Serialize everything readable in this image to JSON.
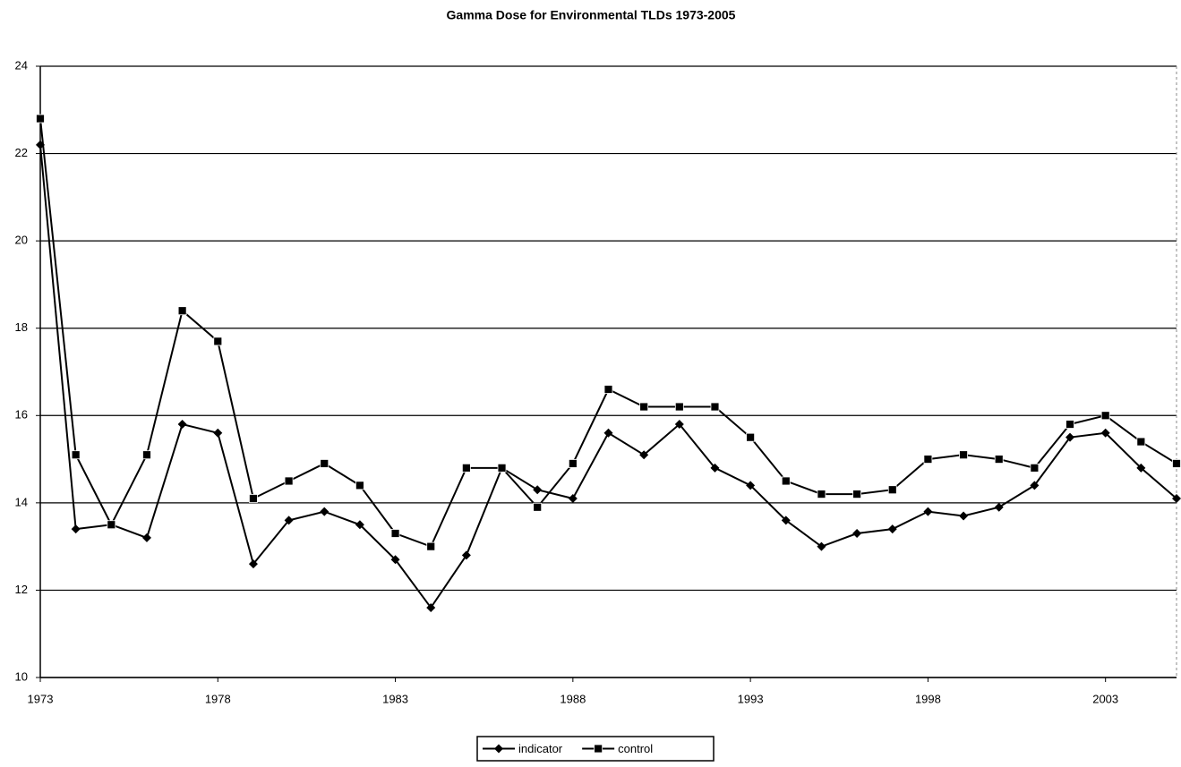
{
  "chart_data": {
    "type": "line",
    "title": "Gamma Dose for Environmental TLDs 1973-2005",
    "x": [
      1973,
      1974,
      1975,
      1976,
      1977,
      1978,
      1979,
      1980,
      1981,
      1982,
      1983,
      1984,
      1985,
      1986,
      1987,
      1988,
      1989,
      1990,
      1991,
      1992,
      1993,
      1994,
      1995,
      1996,
      1997,
      1998,
      1999,
      2000,
      2001,
      2002,
      2003,
      2004,
      2005
    ],
    "series": [
      {
        "name": "indicator",
        "color": "#000000",
        "marker": "diamond",
        "values": [
          22.2,
          13.4,
          13.5,
          13.2,
          15.8,
          15.6,
          12.6,
          13.6,
          13.8,
          13.5,
          12.7,
          11.6,
          12.8,
          14.8,
          14.3,
          14.1,
          15.6,
          15.1,
          15.8,
          14.8,
          14.4,
          13.6,
          13.0,
          13.3,
          13.4,
          13.8,
          13.7,
          13.9,
          14.4,
          15.5,
          15.6,
          14.8,
          14.1
        ]
      },
      {
        "name": "control",
        "color": "#000000",
        "marker": "square",
        "values": [
          22.8,
          15.1,
          13.5,
          15.1,
          18.4,
          17.7,
          14.1,
          14.5,
          14.9,
          14.4,
          13.3,
          13.0,
          14.8,
          14.8,
          13.9,
          14.9,
          16.6,
          16.2,
          16.2,
          16.2,
          15.5,
          14.5,
          14.2,
          14.2,
          14.3,
          15.0,
          15.1,
          15.0,
          14.8,
          15.8,
          16.0,
          15.4,
          14.9
        ]
      }
    ],
    "xlim": [
      1973,
      2005
    ],
    "xticks": [
      1973,
      1978,
      1983,
      1988,
      1993,
      1998,
      2003
    ],
    "ylim": [
      10,
      24
    ],
    "yticks": [
      10,
      12,
      14,
      16,
      18,
      20,
      22,
      24
    ],
    "grid": true,
    "legend": "bottom"
  }
}
